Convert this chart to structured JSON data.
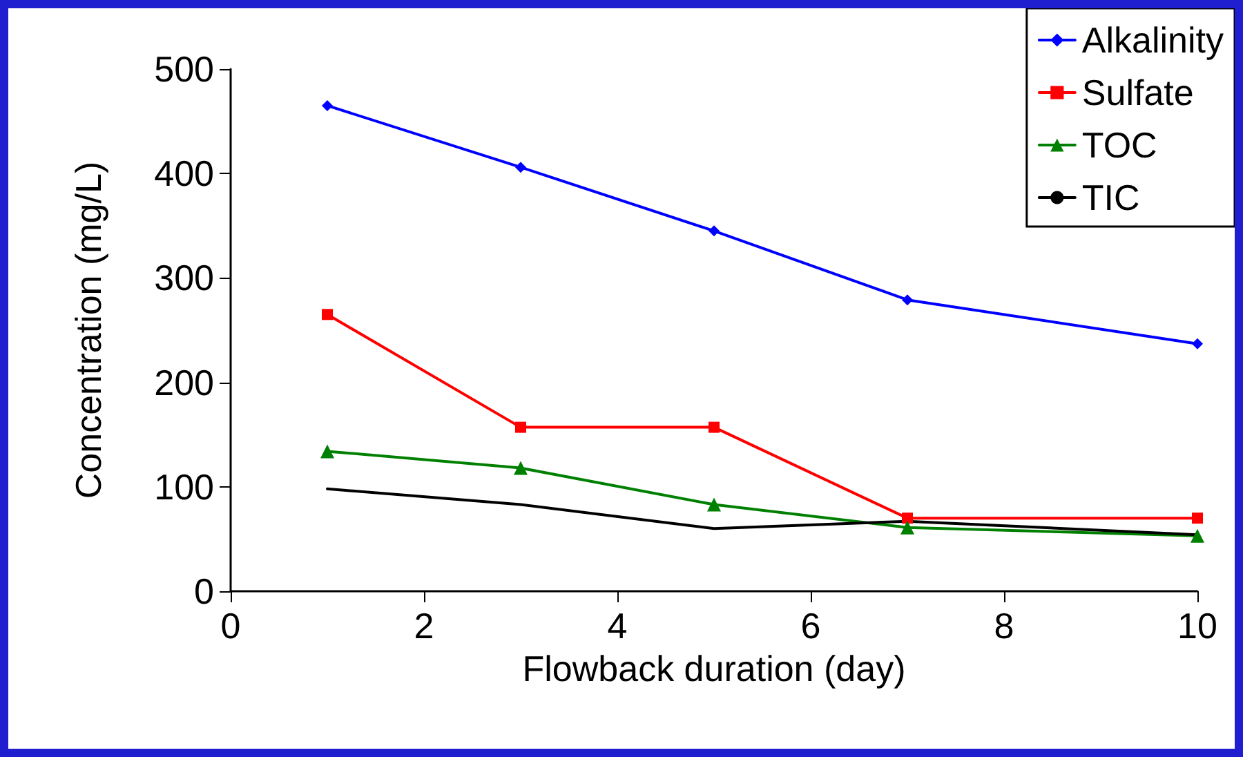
{
  "chart_data": {
    "type": "line",
    "xlabel": "Flowback duration (day)",
    "ylabel": "Concentration (mg/L)",
    "x": [
      1,
      3,
      5,
      7,
      10
    ],
    "series": [
      {
        "name": "Alkalinity",
        "color": "#0000ff",
        "marker": "diamond",
        "values": [
          465,
          406,
          345,
          279,
          237
        ]
      },
      {
        "name": "Sulfate",
        "color": "#ff0000",
        "marker": "square",
        "values": [
          265,
          157,
          157,
          70,
          70
        ]
      },
      {
        "name": "TOC",
        "color": "#008000",
        "marker": "triangle",
        "values": [
          134,
          118,
          83,
          61,
          53
        ]
      },
      {
        "name": "TIC",
        "color": "#000000",
        "marker": "none",
        "values": [
          98,
          83,
          60,
          67,
          54
        ]
      }
    ],
    "xlim": [
      0,
      10
    ],
    "xticks": [
      0,
      2,
      4,
      6,
      8,
      10
    ],
    "ylim": [
      0,
      500
    ],
    "yticks": [
      0,
      100,
      200,
      300,
      400,
      500
    ],
    "grid": false,
    "legend": "top right"
  }
}
